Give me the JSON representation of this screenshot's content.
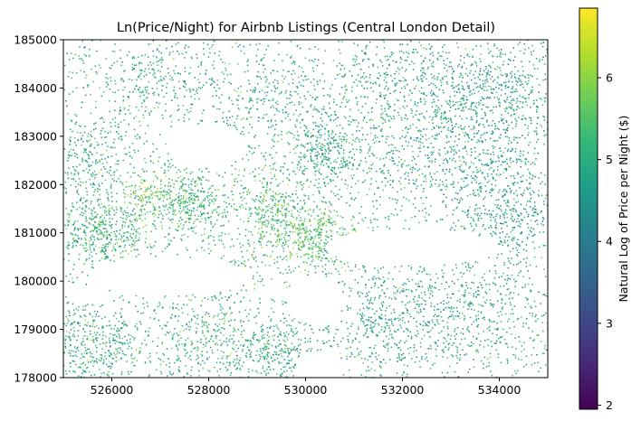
{
  "chart_data": {
    "type": "scatter",
    "title": "Ln(Price/Night) for Airbnb Listings (Central London Detail)",
    "xlabel": "",
    "ylabel": "",
    "xlim": [
      525000,
      535000
    ],
    "ylim": [
      178000,
      185000
    ],
    "xticks": [
      526000,
      528000,
      530000,
      532000,
      534000
    ],
    "yticks": [
      178000,
      179000,
      180000,
      181000,
      182000,
      183000,
      184000,
      185000
    ],
    "xtick_labels": [
      "526000",
      "528000",
      "530000",
      "532000",
      "534000"
    ],
    "ytick_labels": [
      "178000",
      "179000",
      "180000",
      "181000",
      "182000",
      "183000",
      "184000",
      "185000"
    ],
    "colorbar": {
      "label": "Natural Log of Price per Night ($)",
      "colormap": "viridis",
      "range": [
        1.95,
        6.85
      ],
      "ticks": [
        2,
        3,
        4,
        5,
        6
      ],
      "tick_labels": [
        "2",
        "3",
        "4",
        "5",
        "6"
      ]
    },
    "clusters": [
      {
        "x": 525800,
        "y": 181000,
        "sx": 500,
        "sy": 350,
        "n": 420,
        "mean": 5.2
      },
      {
        "x": 527500,
        "y": 181600,
        "sx": 500,
        "sy": 400,
        "n": 420,
        "mean": 5.3
      },
      {
        "x": 529300,
        "y": 181500,
        "sx": 450,
        "sy": 450,
        "n": 360,
        "mean": 5.4
      },
      {
        "x": 530200,
        "y": 180900,
        "sx": 500,
        "sy": 350,
        "n": 380,
        "mean": 5.5
      },
      {
        "x": 530400,
        "y": 182700,
        "sx": 350,
        "sy": 450,
        "n": 260,
        "mean": 4.9
      },
      {
        "x": 531800,
        "y": 182500,
        "sx": 900,
        "sy": 700,
        "n": 380,
        "mean": 5.0
      },
      {
        "x": 533800,
        "y": 182600,
        "sx": 800,
        "sy": 700,
        "n": 460,
        "mean": 4.7
      },
      {
        "x": 534000,
        "y": 184000,
        "sx": 700,
        "sy": 500,
        "n": 320,
        "mean": 4.7
      },
      {
        "x": 532200,
        "y": 184200,
        "sx": 900,
        "sy": 500,
        "n": 320,
        "mean": 4.8
      },
      {
        "x": 529200,
        "y": 183800,
        "sx": 700,
        "sy": 600,
        "n": 300,
        "mean": 4.9
      },
      {
        "x": 526800,
        "y": 184200,
        "sx": 700,
        "sy": 500,
        "n": 260,
        "mean": 5.0
      },
      {
        "x": 525600,
        "y": 182500,
        "sx": 450,
        "sy": 600,
        "n": 260,
        "mean": 5.0
      },
      {
        "x": 525600,
        "y": 178700,
        "sx": 550,
        "sy": 400,
        "n": 360,
        "mean": 5.0
      },
      {
        "x": 527800,
        "y": 178800,
        "sx": 600,
        "sy": 450,
        "n": 320,
        "mean": 5.2
      },
      {
        "x": 529400,
        "y": 178600,
        "sx": 500,
        "sy": 400,
        "n": 300,
        "mean": 5.0
      },
      {
        "x": 531600,
        "y": 179200,
        "sx": 700,
        "sy": 600,
        "n": 380,
        "mean": 4.8
      },
      {
        "x": 533500,
        "y": 179300,
        "sx": 800,
        "sy": 700,
        "n": 420,
        "mean": 4.8
      },
      {
        "x": 534300,
        "y": 181300,
        "sx": 500,
        "sy": 500,
        "n": 260,
        "mean": 4.6
      },
      {
        "x": 528600,
        "y": 180200,
        "sx": 250,
        "sy": 200,
        "n": 80,
        "mean": 5.3
      },
      {
        "x": 526700,
        "y": 181800,
        "sx": 200,
        "sy": 200,
        "n": 60,
        "mean": 6.1
      }
    ],
    "empty_regions": [
      {
        "x": 528000,
        "y": 182800,
        "rx": 800,
        "ry": 450
      },
      {
        "x": 527200,
        "y": 180100,
        "rx": 1700,
        "ry": 400
      },
      {
        "x": 532200,
        "y": 180700,
        "rx": 1800,
        "ry": 380
      },
      {
        "x": 530200,
        "y": 179600,
        "rx": 600,
        "ry": 500
      },
      {
        "x": 530200,
        "y": 178200,
        "rx": 400,
        "ry": 350
      }
    ],
    "uniform_background": {
      "n": 2000,
      "mean": 4.9
    }
  }
}
